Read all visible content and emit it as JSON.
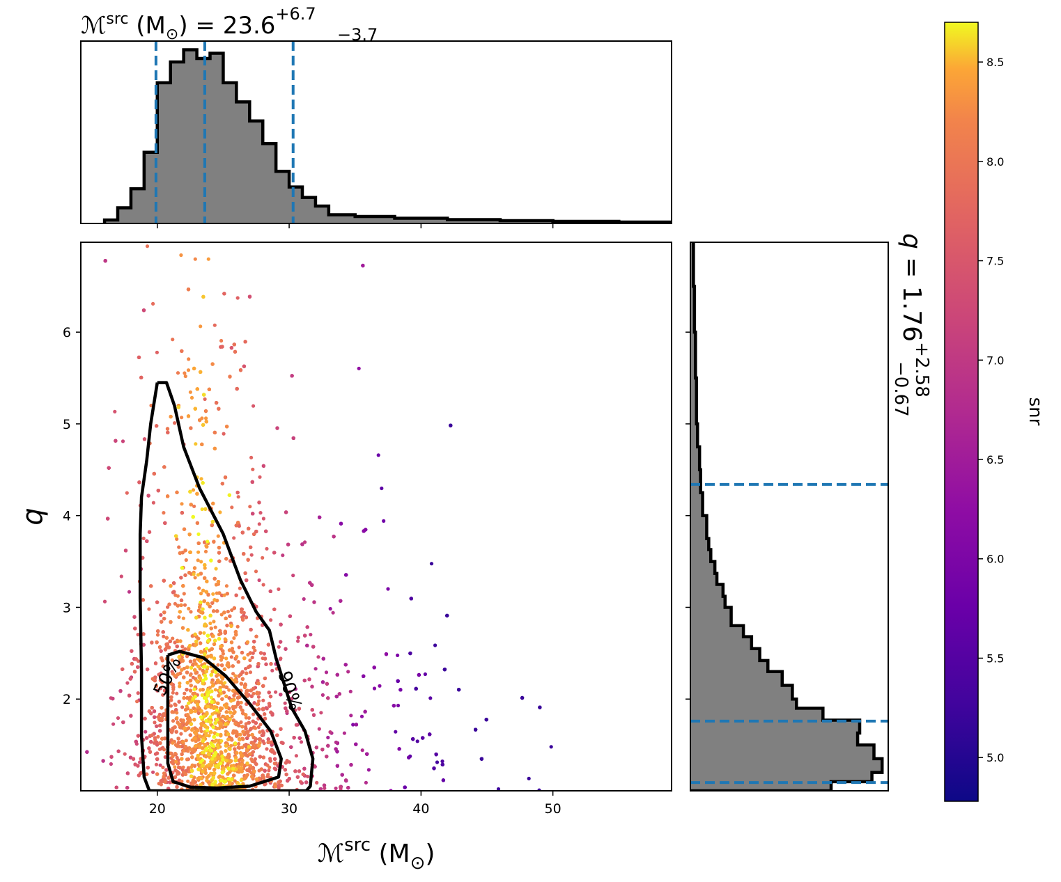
{
  "chart_data": {
    "type": "scatter",
    "title_top": {
      "param": "ℳ",
      "param_sup": "src",
      "unit": " (M",
      "unit_sub": "⊙",
      "unit_close": ")",
      "eq": " = 23.6",
      "plus": "+6.7",
      "minus": "−3.7",
      "median": 23.6,
      "lower": 19.9,
      "upper": 30.3
    },
    "title_right": {
      "param": "q",
      "eq": " = 1.76",
      "plus": "+2.58",
      "minus": "−0.67",
      "median": 1.76,
      "lower": 1.09,
      "upper": 4.34
    },
    "xlabel": {
      "main": "ℳ",
      "sup": "src",
      "unit": " (M",
      "unit_sub": "⊙",
      "unit_close": ")"
    },
    "ylabel": "q",
    "xlim": [
      14.2,
      59.0
    ],
    "ylim": [
      1.0,
      6.98
    ],
    "xticks": [
      "20",
      "30",
      "40",
      "50"
    ],
    "yticks": [
      "2",
      "3",
      "4",
      "5",
      "6"
    ],
    "colorbar": {
      "label": "snr",
      "range": [
        4.78,
        8.7
      ],
      "ticks": [
        "5.0",
        "5.5",
        "6.0",
        "6.5",
        "7.0",
        "7.5",
        "8.0",
        "8.5"
      ],
      "colormap": "plasma"
    },
    "contour_labels": [
      "50%",
      "90%"
    ],
    "contours": {
      "c50": [
        [
          20.8,
          2.48
        ],
        [
          21.7,
          2.52
        ],
        [
          23.5,
          2.45
        ],
        [
          25.2,
          2.25
        ],
        [
          27.0,
          1.95
        ],
        [
          28.6,
          1.65
        ],
        [
          29.4,
          1.35
        ],
        [
          29.2,
          1.15
        ],
        [
          27.0,
          1.05
        ],
        [
          24.5,
          1.03
        ],
        [
          22.5,
          1.04
        ],
        [
          21.2,
          1.1
        ],
        [
          20.8,
          1.3
        ],
        [
          20.8,
          1.65
        ],
        [
          20.8,
          2.0
        ],
        [
          20.8,
          2.48
        ]
      ],
      "c90": [
        [
          20.0,
          5.45
        ],
        [
          20.7,
          5.45
        ],
        [
          21.3,
          5.2
        ],
        [
          22.0,
          4.75
        ],
        [
          23.2,
          4.3
        ],
        [
          25.0,
          3.8
        ],
        [
          26.3,
          3.3
        ],
        [
          27.5,
          2.95
        ],
        [
          28.5,
          2.75
        ],
        [
          29.0,
          2.45
        ],
        [
          30.2,
          1.9
        ],
        [
          31.2,
          1.65
        ],
        [
          31.8,
          1.35
        ],
        [
          31.6,
          1.05
        ],
        [
          31.3,
          1.0
        ],
        [
          19.4,
          1.0
        ],
        [
          19.0,
          1.15
        ],
        [
          18.8,
          1.6
        ],
        [
          18.8,
          2.3
        ],
        [
          18.7,
          3.1
        ],
        [
          18.7,
          3.8
        ],
        [
          18.8,
          4.2
        ],
        [
          19.2,
          4.6
        ],
        [
          19.5,
          5.0
        ],
        [
          20.0,
          5.45
        ]
      ]
    },
    "top_hist": {
      "bin_edges": [
        16.0,
        17.0,
        18.0,
        19.0,
        20.0,
        21.0,
        22.0,
        23.0,
        24.0,
        25.0,
        26.0,
        27.0,
        28.0,
        29.0,
        30.0,
        31.0,
        32.0,
        33.0,
        35.0,
        38.0,
        42.0,
        46.0,
        50.0,
        55.0,
        59.0
      ],
      "counts": [
        0.2,
        0.9,
        2.0,
        4.1,
        8.1,
        9.3,
        10.0,
        9.5,
        9.8,
        8.1,
        7.0,
        5.9,
        4.6,
        3.0,
        2.1,
        1.5,
        1.0,
        0.5,
        0.4,
        0.3,
        0.22,
        0.16,
        0.12,
        0.08
      ],
      "ymax": 10.5
    },
    "right_hist": {
      "bin_edges": [
        1.0,
        1.1,
        1.2,
        1.35,
        1.5,
        1.63,
        1.77,
        1.9,
        2.0,
        2.15,
        2.3,
        2.42,
        2.55,
        2.68,
        2.8,
        3.0,
        3.12,
        3.25,
        3.37,
        3.5,
        3.63,
        3.75,
        4.0,
        4.25,
        4.5,
        4.75,
        5.0,
        5.5,
        6.0,
        6.5,
        7.0
      ],
      "counts": [
        0.69,
        0.89,
        0.94,
        0.9,
        0.82,
        0.83,
        0.65,
        0.52,
        0.5,
        0.45,
        0.38,
        0.34,
        0.3,
        0.26,
        0.2,
        0.17,
        0.16,
        0.13,
        0.12,
        0.1,
        0.09,
        0.08,
        0.06,
        0.05,
        0.045,
        0.035,
        0.03,
        0.025,
        0.02,
        0.015
      ],
      "xmax": 0.97
    }
  }
}
